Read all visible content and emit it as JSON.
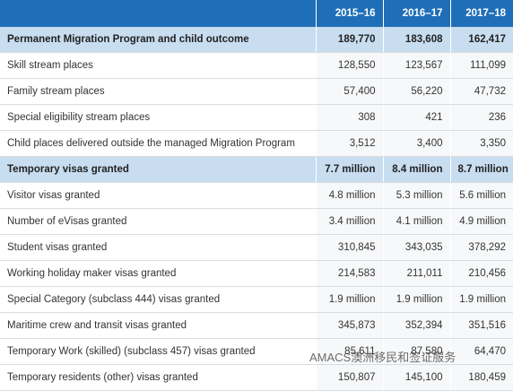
{
  "table": {
    "columns": [
      "2015–16",
      "2016–17",
      "2017–18"
    ],
    "rows": [
      {
        "label": "Permanent Migration Program and child outcome",
        "values": [
          "189,770",
          "183,608",
          "162,417"
        ],
        "section": true
      },
      {
        "label": "Skill stream places",
        "values": [
          "128,550",
          "123,567",
          "111,099"
        ]
      },
      {
        "label": "Family stream places",
        "values": [
          "57,400",
          "56,220",
          "47,732"
        ]
      },
      {
        "label": "Special eligibility stream places",
        "values": [
          "308",
          "421",
          "236"
        ]
      },
      {
        "label": "Child places delivered outside the managed Migration Program",
        "values": [
          "3,512",
          "3,400",
          "3,350"
        ]
      },
      {
        "label": "Temporary visas granted",
        "values": [
          "7.7 million",
          "8.4 million",
          "8.7 million"
        ],
        "section": true
      },
      {
        "label": "Visitor visas granted",
        "values": [
          "4.8 million",
          "5.3 million",
          "5.6 million"
        ]
      },
      {
        "label": "Number of eVisas granted",
        "values": [
          "3.4 million",
          "4.1 million",
          "4.9 million"
        ]
      },
      {
        "label": "Student visas granted",
        "values": [
          "310,845",
          "343,035",
          "378,292"
        ]
      },
      {
        "label": "Working holiday maker visas granted",
        "values": [
          "214,583",
          "211,011",
          "210,456"
        ]
      },
      {
        "label": "Special Category (subclass 444) visas granted",
        "values": [
          "1.9 million",
          "1.9 million",
          "1.9 million"
        ]
      },
      {
        "label": "Maritime crew and transit visas granted",
        "values": [
          "345,873",
          "352,394",
          "351,516"
        ]
      },
      {
        "label": "Temporary Work (skilled) (subclass 457) visas granted",
        "values": [
          "85,611",
          "87,580",
          "64,470"
        ]
      },
      {
        "label": "Temporary residents (other) visas granted",
        "values": [
          "150,807",
          "145,100",
          "180,459"
        ]
      }
    ]
  },
  "watermark": "AMACS澳洲移民和签证服务"
}
